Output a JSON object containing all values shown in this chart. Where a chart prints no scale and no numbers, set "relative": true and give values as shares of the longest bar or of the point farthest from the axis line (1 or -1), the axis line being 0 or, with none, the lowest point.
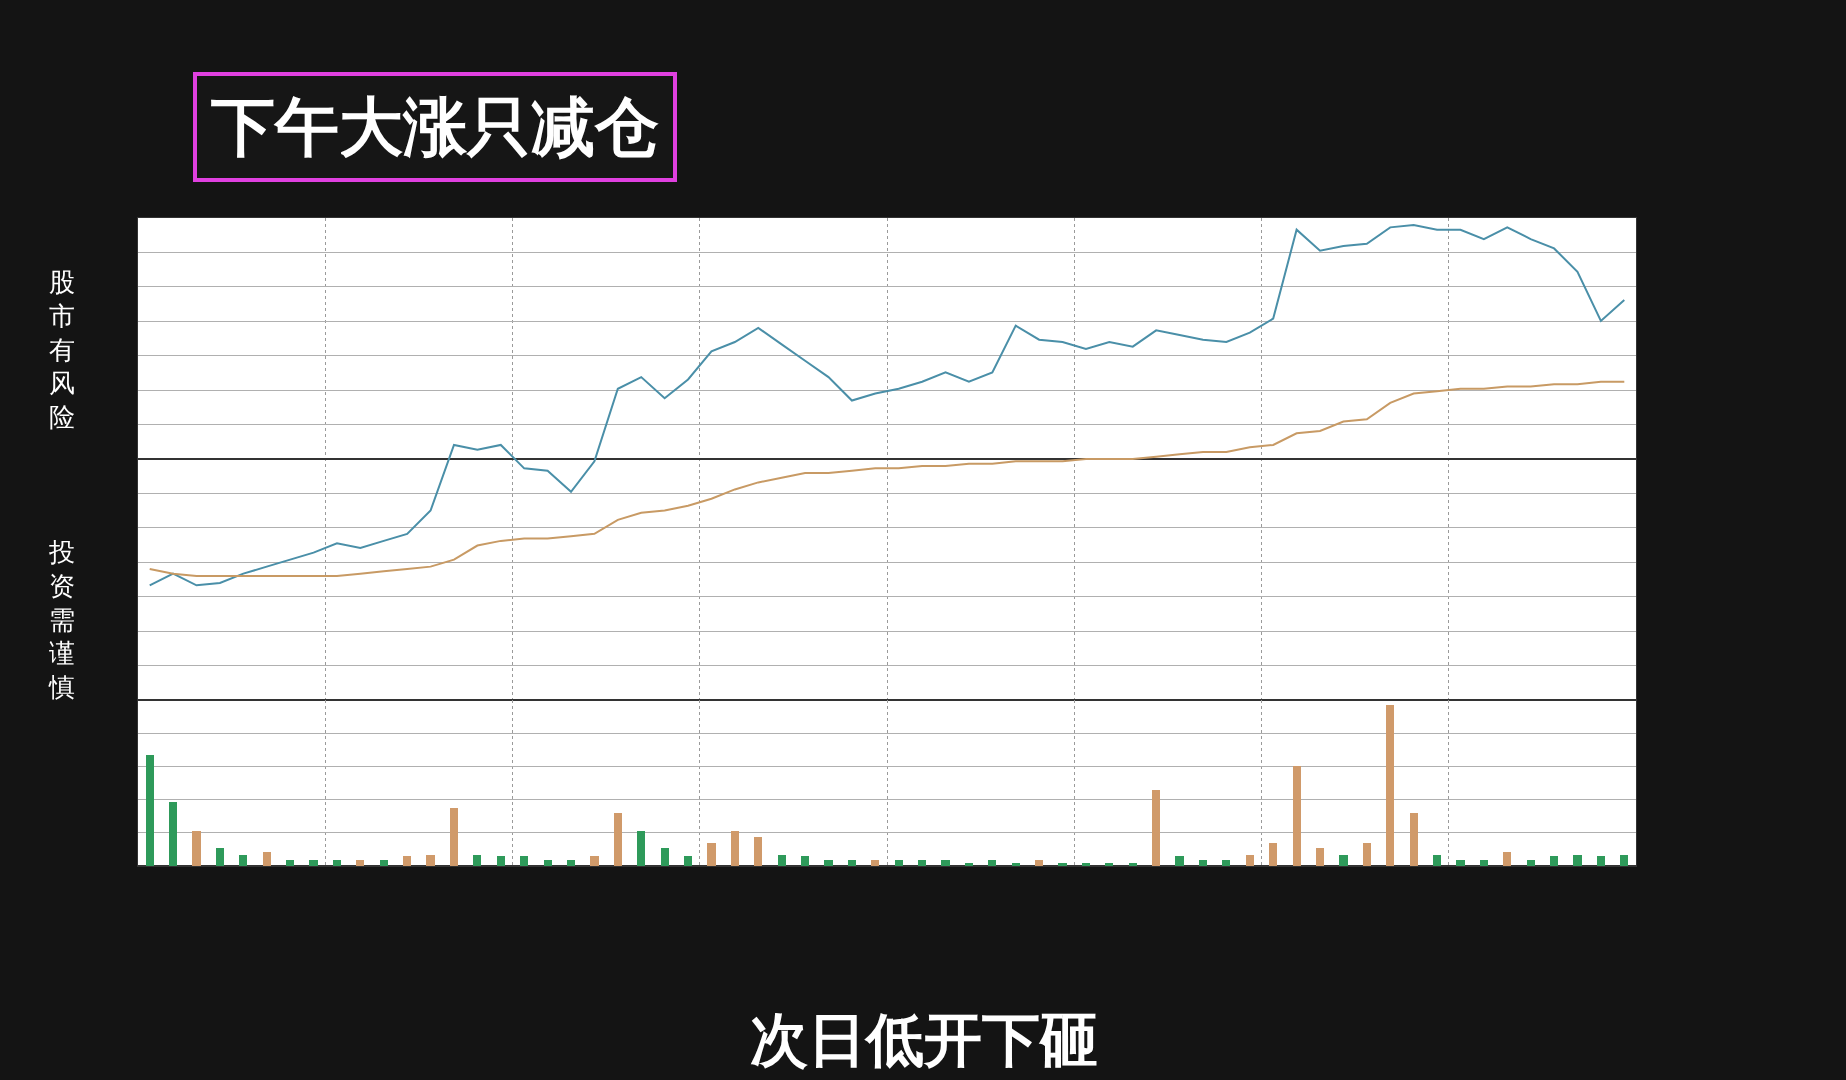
{
  "chart_data": [
    {
      "type": "line",
      "title": "下午大涨只减仓",
      "relative": true,
      "grid": true,
      "marker": "none",
      "line_style": "solid",
      "annotations": [
        "股市有风险",
        "投资需谨慎",
        "次日低开下砸"
      ],
      "categories": [
        null,
        null,
        null,
        null,
        null,
        null,
        null,
        null,
        null,
        null,
        null,
        null,
        null,
        null,
        null,
        null,
        null,
        null,
        null,
        null,
        null,
        null,
        null,
        null,
        null,
        null,
        null,
        null,
        null,
        null,
        null,
        null,
        null,
        null,
        null,
        null,
        null,
        null,
        null,
        null,
        null,
        null,
        null,
        null,
        null,
        null,
        null,
        null,
        null,
        null,
        null,
        null,
        null,
        null,
        null,
        null,
        null,
        null,
        null,
        null,
        null,
        null,
        null,
        null
      ],
      "series": [
        {
          "color": "#4a8fa8",
          "values": [
            -0.54,
            -0.49,
            -0.54,
            -0.53,
            -0.49,
            -0.46,
            -0.43,
            -0.4,
            -0.36,
            -0.38,
            -0.35,
            -0.32,
            -0.22,
            0.06,
            0.04,
            0.06,
            -0.04,
            -0.05,
            -0.14,
            -0.01,
            0.3,
            0.35,
            0.26,
            0.34,
            0.46,
            0.5,
            0.56,
            0.49,
            0.42,
            0.35,
            0.25,
            0.28,
            0.3,
            0.33,
            0.37,
            0.33,
            0.37,
            0.57,
            0.51,
            0.5,
            0.47,
            0.5,
            0.48,
            0.55,
            0.53,
            0.51,
            0.5,
            0.54,
            0.6,
            0.98,
            0.89,
            0.91,
            0.92,
            0.99,
            1.0,
            0.98,
            0.98,
            0.94,
            0.99,
            0.94,
            0.9,
            0.8,
            0.59,
            0.68
          ]
        },
        {
          "color": "#c89a64",
          "values": [
            -0.47,
            -0.49,
            -0.5,
            -0.5,
            -0.5,
            -0.5,
            -0.5,
            -0.5,
            -0.5,
            -0.49,
            -0.48,
            -0.47,
            -0.46,
            -0.43,
            -0.37,
            -0.35,
            -0.34,
            -0.34,
            -0.33,
            -0.32,
            -0.26,
            -0.23,
            -0.22,
            -0.2,
            -0.17,
            -0.13,
            -0.1,
            -0.08,
            -0.06,
            -0.06,
            -0.05,
            -0.04,
            -0.04,
            -0.03,
            -0.03,
            -0.02,
            -0.02,
            -0.01,
            -0.01,
            -0.01,
            0.0,
            0.0,
            0.0,
            0.01,
            0.02,
            0.03,
            0.03,
            0.05,
            0.06,
            0.11,
            0.12,
            0.16,
            0.17,
            0.24,
            0.28,
            0.29,
            0.3,
            0.3,
            0.31,
            0.31,
            0.32,
            0.32,
            0.33,
            0.33
          ]
        }
      ]
    },
    {
      "type": "bar",
      "relative": true,
      "grid": true,
      "categories": [
        null,
        null,
        null,
        null,
        null,
        null,
        null,
        null,
        null,
        null,
        null,
        null,
        null,
        null,
        null,
        null,
        null,
        null,
        null,
        null,
        null,
        null,
        null,
        null,
        null,
        null,
        null,
        null,
        null,
        null,
        null,
        null,
        null,
        null,
        null,
        null,
        null,
        null,
        null,
        null,
        null,
        null,
        null,
        null,
        null,
        null,
        null,
        null,
        null,
        null,
        null,
        null,
        null,
        null,
        null,
        null,
        null,
        null,
        null,
        null,
        null,
        null,
        null,
        null
      ],
      "values": [
        0.69,
        0.4,
        0.22,
        0.11,
        0.07,
        0.09,
        0.04,
        0.04,
        0.04,
        0.04,
        0.04,
        0.06,
        0.07,
        0.36,
        0.07,
        0.06,
        0.06,
        0.04,
        0.04,
        0.06,
        0.33,
        0.22,
        0.11,
        0.06,
        0.14,
        0.22,
        0.18,
        0.07,
        0.06,
        0.04,
        0.04,
        0.04,
        0.04,
        0.04,
        0.04,
        0.02,
        0.04,
        0.02,
        0.04,
        0.02,
        0.02,
        0.02,
        0.02,
        0.47,
        0.06,
        0.04,
        0.04,
        0.07,
        0.14,
        0.62,
        0.11,
        0.07,
        0.14,
        1.0,
        0.33,
        0.07,
        0.04,
        0.04,
        0.09,
        0.04,
        0.06,
        0.07,
        0.06,
        0.07
      ],
      "colors": [
        "#2e9a5a",
        "#2e9a5a",
        "#d09a6a",
        "#2e9a5a",
        "#2e9a5a",
        "#d09a6a",
        "#2e9a5a",
        "#2e9a5a",
        "#2e9a5a",
        "#d09a6a",
        "#2e9a5a",
        "#d09a6a",
        "#d09a6a",
        "#d09a6a",
        "#2e9a5a",
        "#2e9a5a",
        "#2e9a5a",
        "#2e9a5a",
        "#2e9a5a",
        "#d09a6a",
        "#d09a6a",
        "#2e9a5a",
        "#2e9a5a",
        "#2e9a5a",
        "#d09a6a",
        "#d09a6a",
        "#d09a6a",
        "#2e9a5a",
        "#2e9a5a",
        "#2e9a5a",
        "#2e9a5a",
        "#d09a6a",
        "#2e9a5a",
        "#2e9a5a",
        "#2e9a5a",
        "#2e9a5a",
        "#2e9a5a",
        "#2e9a5a",
        "#d09a6a",
        "#2e9a5a",
        "#2e9a5a",
        "#2e9a5a",
        "#2e9a5a",
        "#d09a6a",
        "#2e9a5a",
        "#2e9a5a",
        "#2e9a5a",
        "#d09a6a",
        "#d09a6a",
        "#d09a6a",
        "#d09a6a",
        "#2e9a5a",
        "#d09a6a",
        "#d09a6a",
        "#d09a6a",
        "#2e9a5a",
        "#2e9a5a",
        "#2e9a5a",
        "#d09a6a",
        "#2e9a5a",
        "#2e9a5a",
        "#2e9a5a",
        "#2e9a5a",
        "#2e9a5a"
      ]
    }
  ]
}
